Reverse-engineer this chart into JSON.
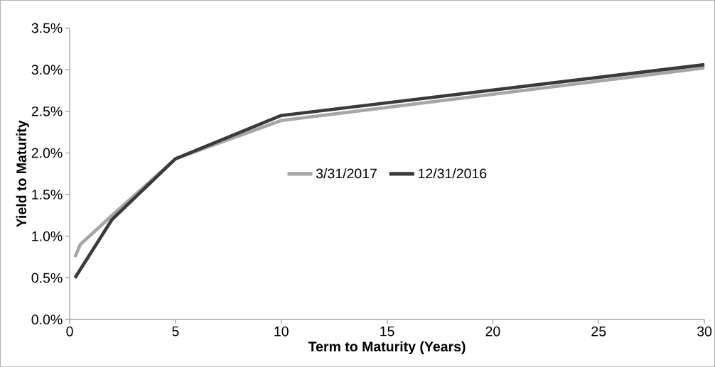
{
  "chart_data": {
    "type": "line",
    "xlabel": "Term to Maturity (Years)",
    "ylabel": "Yield to Maturity",
    "series": [
      {
        "name": "3/31/2017",
        "color": "#a6a6a6",
        "x": [
          0.25,
          0.5,
          2,
          5,
          10,
          30
        ],
        "values": [
          0.75,
          0.9,
          1.25,
          1.93,
          2.39,
          3.02
        ]
      },
      {
        "name": "12/31/2016",
        "color": "#3a3a3a",
        "x": [
          0.25,
          2,
          5,
          10,
          30
        ],
        "values": [
          0.5,
          1.2,
          1.93,
          2.45,
          3.06
        ]
      }
    ],
    "xlim": [
      0,
      30
    ],
    "xticks": [
      0,
      5,
      10,
      15,
      20,
      25,
      30
    ],
    "ylim": [
      0,
      3.5
    ],
    "yticks": [
      {
        "value": 0,
        "label": "0.0%"
      },
      {
        "value": 0.5,
        "label": "0.5%"
      },
      {
        "value": 1,
        "label": "1.0%"
      },
      {
        "value": 1.5,
        "label": "1.5%"
      },
      {
        "value": 2,
        "label": "2.0%"
      },
      {
        "value": 2.5,
        "label": "2.5%"
      },
      {
        "value": 3,
        "label": "3.0%"
      },
      {
        "value": 3.5,
        "label": "3.5%"
      }
    ],
    "legend": "center",
    "grid": false,
    "marker": "none",
    "line_style": "solid"
  }
}
